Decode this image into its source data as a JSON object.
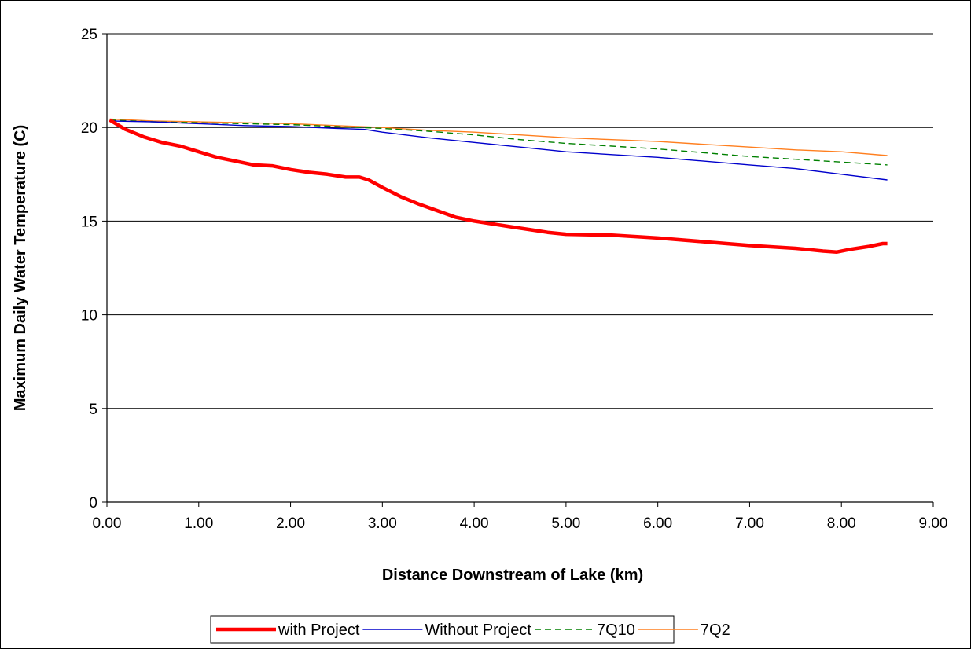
{
  "chart_data": {
    "type": "line",
    "title": "",
    "xlabel": "Distance Downstream of Lake (km)",
    "ylabel": "Maximum Daily Water Temperature (C)",
    "xlim": [
      0,
      9
    ],
    "ylim": [
      0,
      25
    ],
    "x_ticks": [
      "0.00",
      "1.00",
      "2.00",
      "3.00",
      "4.00",
      "5.00",
      "6.00",
      "7.00",
      "8.00",
      "9.00"
    ],
    "y_ticks": [
      "0",
      "5",
      "10",
      "15",
      "20",
      "25"
    ],
    "grid": "horizontal",
    "legend_position": "bottom",
    "series": [
      {
        "name": "with Project",
        "color": "#ff0000",
        "style": "solid-thick",
        "points": [
          [
            0.03,
            20.4
          ],
          [
            0.2,
            19.9
          ],
          [
            0.4,
            19.5
          ],
          [
            0.6,
            19.2
          ],
          [
            0.8,
            19.0
          ],
          [
            1.0,
            18.7
          ],
          [
            1.2,
            18.4
          ],
          [
            1.4,
            18.2
          ],
          [
            1.6,
            18.0
          ],
          [
            1.8,
            17.95
          ],
          [
            2.0,
            17.75
          ],
          [
            2.2,
            17.6
          ],
          [
            2.4,
            17.5
          ],
          [
            2.6,
            17.35
          ],
          [
            2.75,
            17.35
          ],
          [
            2.85,
            17.2
          ],
          [
            3.0,
            16.8
          ],
          [
            3.2,
            16.3
          ],
          [
            3.4,
            15.9
          ],
          [
            3.6,
            15.55
          ],
          [
            3.8,
            15.2
          ],
          [
            4.0,
            15.0
          ],
          [
            4.2,
            14.85
          ],
          [
            4.4,
            14.7
          ],
          [
            4.6,
            14.55
          ],
          [
            4.8,
            14.4
          ],
          [
            5.0,
            14.3
          ],
          [
            5.5,
            14.25
          ],
          [
            6.0,
            14.1
          ],
          [
            6.5,
            13.9
          ],
          [
            7.0,
            13.7
          ],
          [
            7.5,
            13.55
          ],
          [
            7.8,
            13.4
          ],
          [
            7.95,
            13.35
          ],
          [
            8.1,
            13.5
          ],
          [
            8.3,
            13.65
          ],
          [
            8.45,
            13.8
          ],
          [
            8.5,
            13.8
          ]
        ]
      },
      {
        "name": "Without Project",
        "color": "#0000cc",
        "style": "solid",
        "points": [
          [
            0.03,
            20.35
          ],
          [
            0.5,
            20.3
          ],
          [
            1.0,
            20.2
          ],
          [
            1.5,
            20.1
          ],
          [
            2.0,
            20.05
          ],
          [
            2.5,
            19.95
          ],
          [
            2.8,
            19.9
          ],
          [
            3.0,
            19.75
          ],
          [
            3.5,
            19.45
          ],
          [
            4.0,
            19.2
          ],
          [
            4.5,
            18.95
          ],
          [
            5.0,
            18.7
          ],
          [
            5.5,
            18.55
          ],
          [
            6.0,
            18.4
          ],
          [
            6.5,
            18.2
          ],
          [
            7.0,
            18.0
          ],
          [
            7.5,
            17.8
          ],
          [
            8.0,
            17.5
          ],
          [
            8.5,
            17.2
          ]
        ]
      },
      {
        "name": "7Q10",
        "color": "#008000",
        "style": "dashed",
        "points": [
          [
            0.03,
            20.4
          ],
          [
            0.5,
            20.3
          ],
          [
            1.0,
            20.25
          ],
          [
            1.5,
            20.2
          ],
          [
            2.0,
            20.15
          ],
          [
            2.5,
            20.05
          ],
          [
            3.0,
            19.95
          ],
          [
            3.5,
            19.8
          ],
          [
            4.0,
            19.6
          ],
          [
            4.5,
            19.35
          ],
          [
            5.0,
            19.15
          ],
          [
            5.5,
            19.0
          ],
          [
            6.0,
            18.85
          ],
          [
            6.5,
            18.65
          ],
          [
            7.0,
            18.45
          ],
          [
            7.5,
            18.3
          ],
          [
            8.0,
            18.15
          ],
          [
            8.5,
            18.0
          ]
        ]
      },
      {
        "name": "7Q2",
        "color": "#ff7f1f",
        "style": "solid",
        "points": [
          [
            0.03,
            20.45
          ],
          [
            0.5,
            20.35
          ],
          [
            1.0,
            20.3
          ],
          [
            1.5,
            20.25
          ],
          [
            2.0,
            20.2
          ],
          [
            2.5,
            20.1
          ],
          [
            3.0,
            20.0
          ],
          [
            3.5,
            19.85
          ],
          [
            4.0,
            19.75
          ],
          [
            4.5,
            19.6
          ],
          [
            5.0,
            19.45
          ],
          [
            5.5,
            19.35
          ],
          [
            6.0,
            19.25
          ],
          [
            6.5,
            19.1
          ],
          [
            7.0,
            18.95
          ],
          [
            7.5,
            18.8
          ],
          [
            8.0,
            18.7
          ],
          [
            8.5,
            18.5
          ]
        ]
      }
    ]
  }
}
